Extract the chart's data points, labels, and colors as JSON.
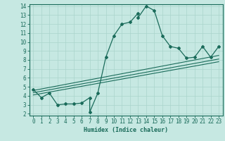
{
  "xlabel": "Humidex (Indice chaleur)",
  "bg_color": "#c6e8e2",
  "line_color": "#1a6b5a",
  "grid_color": "#aad4cc",
  "xlim": [
    -0.5,
    23.5
  ],
  "ylim": [
    1.8,
    14.2
  ],
  "xticks": [
    0,
    1,
    2,
    3,
    4,
    5,
    6,
    7,
    8,
    9,
    10,
    11,
    12,
    13,
    14,
    15,
    16,
    17,
    18,
    19,
    20,
    21,
    22,
    23
  ],
  "yticks": [
    2,
    3,
    4,
    5,
    6,
    7,
    8,
    9,
    10,
    11,
    12,
    13,
    14
  ],
  "series": [
    [
      0,
      4.7
    ],
    [
      1,
      3.8
    ],
    [
      2,
      4.3
    ],
    [
      3,
      3.0
    ],
    [
      4,
      3.1
    ],
    [
      5,
      3.1
    ],
    [
      6,
      3.2
    ],
    [
      7,
      3.8
    ],
    [
      7,
      2.2
    ],
    [
      8,
      4.3
    ],
    [
      9,
      8.3
    ],
    [
      10,
      10.7
    ],
    [
      11,
      12.0
    ],
    [
      12,
      12.2
    ],
    [
      13,
      13.2
    ],
    [
      13,
      12.7
    ],
    [
      14,
      14.0
    ],
    [
      15,
      13.5
    ],
    [
      16,
      10.7
    ],
    [
      17,
      9.5
    ],
    [
      18,
      9.3
    ],
    [
      19,
      8.2
    ],
    [
      20,
      8.3
    ],
    [
      21,
      9.5
    ],
    [
      22,
      8.3
    ],
    [
      23,
      9.5
    ]
  ],
  "linear_lines": [
    {
      "x": [
        0,
        23
      ],
      "y": [
        4.6,
        8.5
      ]
    },
    {
      "x": [
        0,
        23
      ],
      "y": [
        4.35,
        8.1
      ]
    },
    {
      "x": [
        0,
        23
      ],
      "y": [
        4.1,
        7.8
      ]
    }
  ],
  "tick_fontsize": 5.5,
  "xlabel_fontsize": 6.0
}
